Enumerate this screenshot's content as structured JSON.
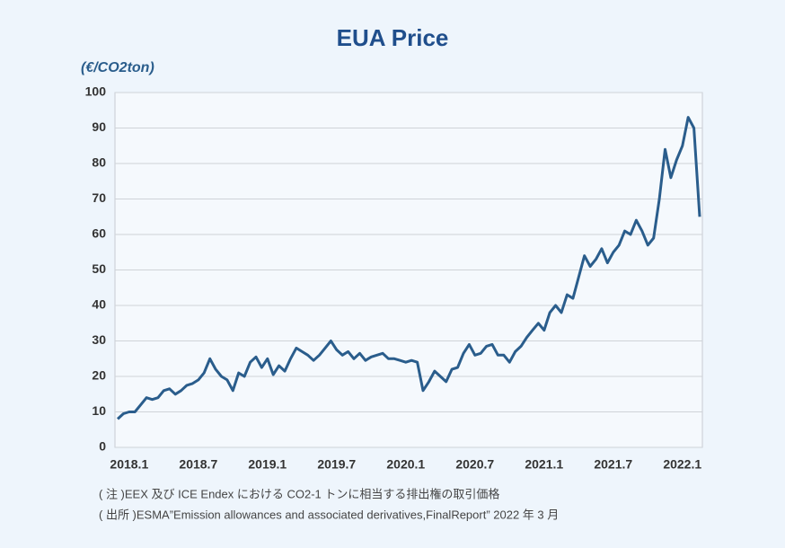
{
  "chart_data": {
    "type": "line",
    "title": "EUA Price",
    "y_label": "(€/CO2ton)",
    "categories": [
      null,
      null,
      "2018.1",
      null,
      null,
      null,
      null,
      null,
      null,
      null,
      null,
      null,
      null,
      null,
      "2018.7",
      null,
      null,
      null,
      null,
      null,
      null,
      null,
      null,
      null,
      null,
      null,
      "2019.1",
      null,
      null,
      null,
      null,
      null,
      null,
      null,
      null,
      null,
      null,
      null,
      "2019.7",
      null,
      null,
      null,
      null,
      null,
      null,
      null,
      null,
      null,
      null,
      null,
      "2020.1",
      null,
      null,
      null,
      null,
      null,
      null,
      null,
      null,
      null,
      null,
      null,
      "2020.7",
      null,
      null,
      null,
      null,
      null,
      null,
      null,
      null,
      null,
      null,
      null,
      "2021.1",
      null,
      null,
      null,
      null,
      null,
      null,
      null,
      null,
      null,
      null,
      null,
      "2021.7",
      null,
      null,
      null,
      null,
      null,
      null,
      null,
      null,
      null,
      null,
      null,
      "2022.1",
      null,
      null,
      null
    ],
    "series": [
      {
        "color": "#2a5d8c",
        "values": [
          8,
          9.5,
          10,
          10,
          12,
          14,
          13.5,
          14,
          16,
          16.5,
          15,
          16,
          17.5,
          18,
          19,
          21,
          25,
          22,
          20,
          19,
          16,
          21,
          20,
          24,
          25.5,
          22.5,
          25,
          20.5,
          23,
          21.5,
          25,
          28,
          27,
          26,
          24.5,
          26,
          28,
          30,
          27.5,
          26,
          27,
          25,
          26.5,
          24.5,
          25.5,
          26,
          26.5,
          25,
          25,
          24.5,
          24,
          24.5,
          24,
          16,
          18.5,
          21.5,
          20,
          18.5,
          22,
          22.5,
          26.5,
          29,
          26,
          26.5,
          28.5,
          29,
          26,
          26,
          24,
          27,
          28.5,
          31,
          33,
          35,
          33,
          38,
          40,
          38,
          43,
          42,
          48,
          54,
          51,
          53,
          56,
          52,
          55,
          57,
          61,
          60,
          64,
          61,
          57,
          59,
          70,
          84,
          76,
          81,
          85,
          93,
          90,
          65
        ]
      }
    ],
    "ylim": [
      0,
      100
    ],
    "yticks": [
      0,
      10,
      20,
      30,
      40,
      50,
      60,
      70,
      80,
      90,
      100
    ],
    "grid": true,
    "notes": [
      "( 注 )EEX 及び ICE Endex における CO2-1 トンに相当する排出権の取引価格",
      "( 出所 )ESMA”Emission allowances and associated derivatives,FinalReport” 2022 年 3 月"
    ]
  }
}
